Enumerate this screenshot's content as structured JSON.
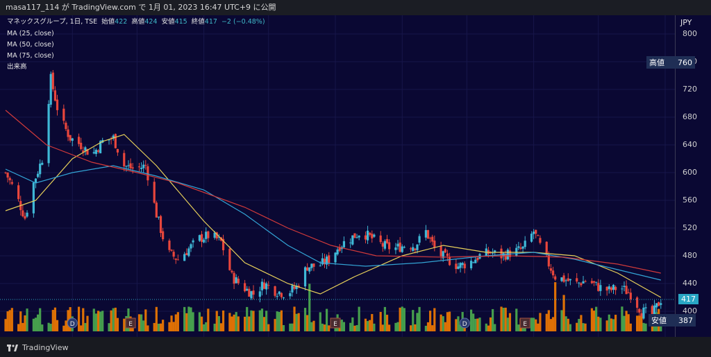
{
  "header": {
    "text": "masa117_114 が TradingView.com で 1月 01, 2023 16:47 UTC+9 に公開"
  },
  "legend": {
    "symbol": "マネックスグループ, 1日, TSE",
    "open_label": "始値",
    "open": "422",
    "high_label": "高値",
    "high": "424",
    "low_label": "安値",
    "low": "415",
    "close_label": "終値",
    "close": "417",
    "change": "−2 (−0.48%)",
    "ma1": "MA (25, close)",
    "ma2": "MA (50, close)",
    "ma3": "MA (75, close)",
    "volume": "出来高"
  },
  "axis": {
    "currency": "JPY"
  },
  "badges": {
    "high_label": "高値",
    "high_value": "760",
    "last_value": "417",
    "low_label": "安値",
    "low_value": "387"
  },
  "footer": {
    "brand": "TradingView"
  },
  "colors": {
    "background": "#0a0833",
    "up": "#3fb8d6",
    "down": "#e8463c",
    "ma25": "#e8d15a",
    "ma50": "#33a5d6",
    "ma75": "#d23a3a",
    "vol_up": "#4caf50",
    "vol_down": "#f57c00"
  },
  "chart_data": {
    "type": "candlestick",
    "title": "マネックスグループ, 1日, TSE",
    "ylabel": "JPY",
    "ylim": [
      385,
      810
    ],
    "yticks": [
      400,
      440,
      480,
      520,
      560,
      600,
      640,
      680,
      720,
      760,
      800
    ],
    "x_ticks": [
      "4月",
      "5月",
      "6月",
      "7月",
      "8月",
      "9月",
      "10月",
      "11月",
      "12月",
      "2023"
    ],
    "event_markers": [
      {
        "label": "D",
        "month": "4月"
      },
      {
        "label": "E",
        "month": "5月"
      },
      {
        "label": "E",
        "month": "8月"
      },
      {
        "label": "D",
        "month": "10月"
      },
      {
        "label": "E",
        "month": "11月"
      }
    ],
    "close_series": [
      {
        "x": "2022-03-01",
        "y": 600
      },
      {
        "x": "2022-03-05",
        "y": 575
      },
      {
        "x": "2022-03-10",
        "y": 535
      },
      {
        "x": "2022-03-14",
        "y": 585
      },
      {
        "x": "2022-03-18",
        "y": 620
      },
      {
        "x": "2022-03-22",
        "y": 735
      },
      {
        "x": "2022-03-26",
        "y": 680
      },
      {
        "x": "2022-03-31",
        "y": 650
      },
      {
        "x": "2022-04-05",
        "y": 640
      },
      {
        "x": "2022-04-10",
        "y": 625
      },
      {
        "x": "2022-04-15",
        "y": 645
      },
      {
        "x": "2022-04-20",
        "y": 650
      },
      {
        "x": "2022-04-25",
        "y": 610
      },
      {
        "x": "2022-04-30",
        "y": 605
      },
      {
        "x": "2022-05-05",
        "y": 610
      },
      {
        "x": "2022-05-10",
        "y": 540
      },
      {
        "x": "2022-05-15",
        "y": 485
      },
      {
        "x": "2022-05-20",
        "y": 475
      },
      {
        "x": "2022-05-25",
        "y": 490
      },
      {
        "x": "2022-05-30",
        "y": 505
      },
      {
        "x": "2022-06-04",
        "y": 510
      },
      {
        "x": "2022-06-09",
        "y": 500
      },
      {
        "x": "2022-06-14",
        "y": 450
      },
      {
        "x": "2022-06-19",
        "y": 435
      },
      {
        "x": "2022-06-24",
        "y": 425
      },
      {
        "x": "2022-06-29",
        "y": 440
      },
      {
        "x": "2022-07-04",
        "y": 430
      },
      {
        "x": "2022-07-09",
        "y": 425
      },
      {
        "x": "2022-07-14",
        "y": 435
      },
      {
        "x": "2022-07-19",
        "y": 465
      },
      {
        "x": "2022-07-24",
        "y": 465
      },
      {
        "x": "2022-07-29",
        "y": 475
      },
      {
        "x": "2022-08-03",
        "y": 495
      },
      {
        "x": "2022-08-08",
        "y": 505
      },
      {
        "x": "2022-08-13",
        "y": 515
      },
      {
        "x": "2022-08-18",
        "y": 505
      },
      {
        "x": "2022-08-23",
        "y": 495
      },
      {
        "x": "2022-08-28",
        "y": 490
      },
      {
        "x": "2022-09-02",
        "y": 495
      },
      {
        "x": "2022-09-07",
        "y": 495
      },
      {
        "x": "2022-09-12",
        "y": 515
      },
      {
        "x": "2022-09-17",
        "y": 485
      },
      {
        "x": "2022-09-22",
        "y": 475
      },
      {
        "x": "2022-09-27",
        "y": 465
      },
      {
        "x": "2022-10-02",
        "y": 470
      },
      {
        "x": "2022-10-07",
        "y": 480
      },
      {
        "x": "2022-10-12",
        "y": 485
      },
      {
        "x": "2022-10-17",
        "y": 480
      },
      {
        "x": "2022-10-22",
        "y": 485
      },
      {
        "x": "2022-10-27",
        "y": 490
      },
      {
        "x": "2022-11-01",
        "y": 515
      },
      {
        "x": "2022-11-06",
        "y": 480
      },
      {
        "x": "2022-11-11",
        "y": 450
      },
      {
        "x": "2022-11-16",
        "y": 445
      },
      {
        "x": "2022-11-21",
        "y": 440
      },
      {
        "x": "2022-11-26",
        "y": 445
      },
      {
        "x": "2022-12-01",
        "y": 435
      },
      {
        "x": "2022-12-06",
        "y": 430
      },
      {
        "x": "2022-12-11",
        "y": 435
      },
      {
        "x": "2022-12-16",
        "y": 425
      },
      {
        "x": "2022-12-21",
        "y": 400
      },
      {
        "x": "2022-12-26",
        "y": 395
      },
      {
        "x": "2022-12-30",
        "y": 417
      }
    ],
    "ma_series": [
      {
        "name": "MA (25, close)",
        "x": [
          "2022-03-01",
          "2022-03-15",
          "2022-04-01",
          "2022-04-15",
          "2022-04-25",
          "2022-05-10",
          "2022-06-01",
          "2022-06-20",
          "2022-07-10",
          "2022-07-25",
          "2022-08-10",
          "2022-09-01",
          "2022-09-20",
          "2022-10-10",
          "2022-11-01",
          "2022-11-20",
          "2022-12-10",
          "2022-12-30"
        ],
        "y": [
          545,
          560,
          620,
          645,
          655,
          610,
          530,
          470,
          440,
          425,
          450,
          480,
          495,
          485,
          485,
          480,
          455,
          420
        ]
      },
      {
        "name": "MA (50, close)",
        "x": [
          "2022-03-01",
          "2022-03-15",
          "2022-04-01",
          "2022-04-20",
          "2022-05-10",
          "2022-06-01",
          "2022-06-20",
          "2022-07-10",
          "2022-07-25",
          "2022-08-15",
          "2022-09-10",
          "2022-10-10",
          "2022-11-01",
          "2022-11-20",
          "2022-12-10",
          "2022-12-30"
        ],
        "y": [
          605,
          585,
          600,
          610,
          595,
          575,
          540,
          495,
          470,
          465,
          470,
          480,
          485,
          475,
          460,
          445
        ]
      },
      {
        "name": "MA (75, close)",
        "x": [
          "2022-03-01",
          "2022-03-20",
          "2022-04-10",
          "2022-05-01",
          "2022-05-20",
          "2022-06-20",
          "2022-07-10",
          "2022-07-30",
          "2022-08-20",
          "2022-09-20",
          "2022-10-20",
          "2022-11-15",
          "2022-12-10",
          "2022-12-30"
        ],
        "y": [
          690,
          640,
          615,
          600,
          585,
          550,
          520,
          495,
          480,
          478,
          480,
          478,
          468,
          455
        ]
      }
    ],
    "volume_bars": "green = up day, orange = down day"
  }
}
